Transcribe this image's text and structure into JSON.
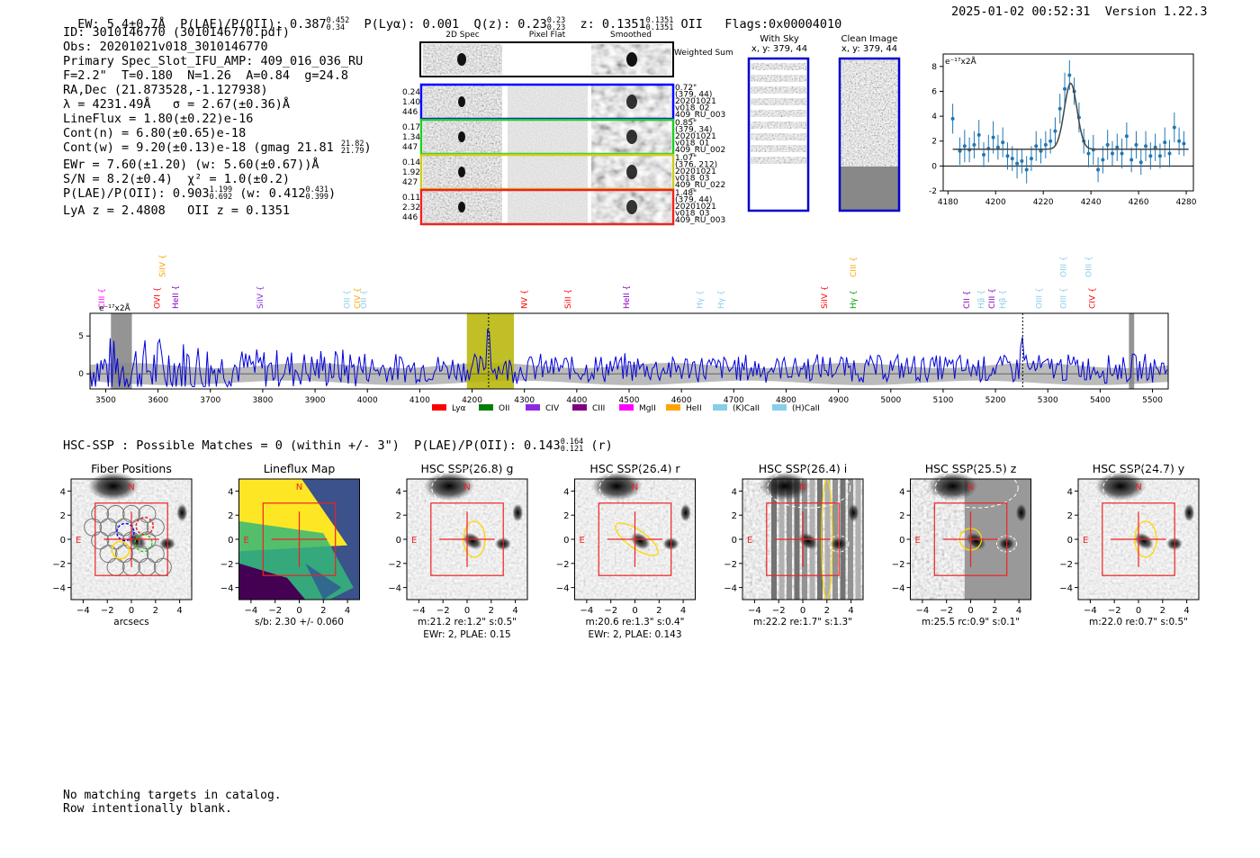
{
  "header": {
    "ew": "EW: 5.4±0.7Å",
    "plae_label": "P(LAE)/P(OII): 0.387",
    "plae_hi": "0.452",
    "plae_lo": "0.34",
    "plya": "P(Lyα): 0.001",
    "qz_label": "Q(z): 0.23",
    "qz_hi": "0.23",
    "qz_lo": "0.23",
    "z_label": "z: 0.1351",
    "z_hi": "0.1351",
    "z_lo": "0.1351",
    "z_line": "OII",
    "flags": "Flags:0x00004010",
    "timestamp": "2025-01-02 00:52:31",
    "version": "Version 1.22.3"
  },
  "info": {
    "id": "ID: 3010146770 (3010146770.pdf)",
    "obs": "Obs: 20201021v018_3010146770",
    "primary": "Primary Spec_Slot_IFU_AMP: 409_016_036_RU",
    "fparams": "F=2.2\"  T=0.180  N=1.26  A=0.84  g=24.8",
    "radec": "RA,Dec (21.873528,-1.127938)",
    "lambda": "λ = 4231.49Å   σ = 2.67(±0.36)Å",
    "lineflux": "LineFlux = 1.80(±0.22)e-16",
    "contn": "Cont(n) = 6.80(±0.65)e-18",
    "contw": "Cont(w) = 9.20(±0.13)e-18 (gmag 21.81",
    "contw_hi": "21.82",
    "contw_lo": "21.79",
    "contw_end": ")",
    "ewr": "EWr = 7.60(±1.20) (w: 5.60(±0.67))Å",
    "sn": "S/N = 8.2(±0.4)  χ² = 1.0(±0.2)",
    "plae": "P(LAE)/P(OII): 0.903",
    "plae_hi": "1.199",
    "plae_lo": "0.692",
    "plae_w": "(w: 0.412",
    "plae_w_hi": "0.431",
    "plae_w_lo": "0.399",
    "plae_end": ")",
    "zs": "LyA z = 2.4808   OII z = 0.1351"
  },
  "cutouts": {
    "col_titles": [
      "2D Spec",
      "Pixel Flat",
      "Smoothed"
    ],
    "weighted_label": "Weighted Sum",
    "rows": [
      {
        "left": [
          "0.24",
          "1.40",
          "446"
        ],
        "right": [
          "0.72\"",
          "(379, 44)",
          "20201021",
          "v018_02",
          "409_RU_003"
        ],
        "color": "#0000ff"
      },
      {
        "left": [
          "0.17",
          "1.34",
          "447"
        ],
        "right": [
          "0.85\"",
          "(379, 34)",
          "20201021",
          "v018_01",
          "409_RU_002"
        ],
        "color": "#22cc22"
      },
      {
        "left": [
          "0.14",
          "1.92",
          "427"
        ],
        "right": [
          "1.07\"",
          "(376, 212)",
          "20201021",
          "v018_03",
          "409_RU_022"
        ],
        "color": "#cccc22"
      },
      {
        "left": [
          "0.11",
          "2.32",
          "446"
        ],
        "right": [
          "1.48\"",
          "(379, 44)",
          "20201021",
          "v018_03",
          "409_RU_003"
        ],
        "color": "#ee2222"
      }
    ]
  },
  "sky": {
    "with_sky_title": "With Sky",
    "with_sky_xy": "x, y: 379, 44",
    "clean_title": "Clean Image",
    "clean_xy": "x, y: 379, 44"
  },
  "chart_data": [
    {
      "id": "zoom-fit",
      "type": "scatter",
      "title": "",
      "ylabel": "e⁻¹⁷x2Å",
      "xlim": [
        4178,
        4283
      ],
      "ylim": [
        -2,
        9
      ],
      "xticks": [
        4180,
        4200,
        4220,
        4240,
        4260,
        4280
      ],
      "yticks": [
        -2,
        0,
        2,
        4,
        6,
        8
      ],
      "points": [
        {
          "x": 4182,
          "y": 3.8,
          "e": 1.2
        },
        {
          "x": 4185,
          "y": 1.2,
          "e": 1.1
        },
        {
          "x": 4187,
          "y": 1.6,
          "e": 1.3
        },
        {
          "x": 4189,
          "y": 1.3,
          "e": 1.0
        },
        {
          "x": 4191,
          "y": 1.7,
          "e": 1.1
        },
        {
          "x": 4193,
          "y": 2.5,
          "e": 1.2
        },
        {
          "x": 4195,
          "y": 0.9,
          "e": 1.0
        },
        {
          "x": 4197,
          "y": 1.4,
          "e": 1.1
        },
        {
          "x": 4199,
          "y": 2.3,
          "e": 1.3
        },
        {
          "x": 4201,
          "y": 1.5,
          "e": 1.0
        },
        {
          "x": 4203,
          "y": 1.9,
          "e": 1.2
        },
        {
          "x": 4205,
          "y": 0.8,
          "e": 1.1
        },
        {
          "x": 4207,
          "y": 0.6,
          "e": 1.0
        },
        {
          "x": 4209,
          "y": 0.2,
          "e": 1.2
        },
        {
          "x": 4211,
          "y": 0.4,
          "e": 1.0
        },
        {
          "x": 4213,
          "y": -0.3,
          "e": 1.1
        },
        {
          "x": 4215,
          "y": 0.6,
          "e": 1.0
        },
        {
          "x": 4217,
          "y": 1.6,
          "e": 1.2
        },
        {
          "x": 4219,
          "y": 1.2,
          "e": 1.0
        },
        {
          "x": 4221,
          "y": 1.7,
          "e": 1.1
        },
        {
          "x": 4223,
          "y": 2.0,
          "e": 1.0
        },
        {
          "x": 4225,
          "y": 2.8,
          "e": 1.1
        },
        {
          "x": 4227,
          "y": 4.6,
          "e": 1.2
        },
        {
          "x": 4229,
          "y": 6.2,
          "e": 1.3
        },
        {
          "x": 4231,
          "y": 7.3,
          "e": 1.2
        },
        {
          "x": 4233,
          "y": 6.0,
          "e": 1.1
        },
        {
          "x": 4235,
          "y": 3.9,
          "e": 1.2
        },
        {
          "x": 4237,
          "y": 2.0,
          "e": 1.0
        },
        {
          "x": 4239,
          "y": 1.0,
          "e": 1.1
        },
        {
          "x": 4241,
          "y": 1.3,
          "e": 1.2
        },
        {
          "x": 4243,
          "y": -0.3,
          "e": 1.0
        },
        {
          "x": 4245,
          "y": 0.5,
          "e": 1.1
        },
        {
          "x": 4247,
          "y": 1.7,
          "e": 1.2
        },
        {
          "x": 4249,
          "y": 1.0,
          "e": 1.0
        },
        {
          "x": 4251,
          "y": 1.5,
          "e": 1.1
        },
        {
          "x": 4253,
          "y": 1.0,
          "e": 1.2
        },
        {
          "x": 4255,
          "y": 2.4,
          "e": 1.1
        },
        {
          "x": 4257,
          "y": 0.5,
          "e": 1.0
        },
        {
          "x": 4259,
          "y": 1.7,
          "e": 1.1
        },
        {
          "x": 4261,
          "y": 0.3,
          "e": 1.0
        },
        {
          "x": 4263,
          "y": 1.6,
          "e": 1.2
        },
        {
          "x": 4265,
          "y": 0.8,
          "e": 1.1
        },
        {
          "x": 4267,
          "y": 1.5,
          "e": 1.1
        },
        {
          "x": 4269,
          "y": 0.8,
          "e": 1.0
        },
        {
          "x": 4271,
          "y": 1.9,
          "e": 1.2
        },
        {
          "x": 4273,
          "y": 1.0,
          "e": 1.1
        },
        {
          "x": 4275,
          "y": 3.1,
          "e": 1.2
        },
        {
          "x": 4277,
          "y": 2.0,
          "e": 1.1
        },
        {
          "x": 4279,
          "y": 1.8,
          "e": 1.0
        }
      ],
      "fit": {
        "center": 4231.49,
        "sigma": 2.67,
        "amplitude": 5.3,
        "continuum": 1.35
      }
    },
    {
      "id": "full-spectrum",
      "type": "line",
      "ylabel": "e⁻¹⁷x2Å",
      "xlim": [
        3470,
        5530
      ],
      "ylim": [
        -2,
        8
      ],
      "xticks": [
        3500,
        3600,
        3700,
        3800,
        3900,
        4000,
        4100,
        4200,
        4300,
        4400,
        4500,
        4600,
        4700,
        4800,
        4900,
        5000,
        5100,
        5200,
        5300,
        5400,
        5500
      ],
      "yticks": [
        0,
        5
      ],
      "highlight": [
        4190,
        4280
      ],
      "line_markers": [
        4231.5,
        5252
      ],
      "lines": [
        {
          "label": "CIII",
          "x": 3492,
          "color": "#ff00ff",
          "row": 0
        },
        {
          "label": "OVI",
          "x": 3598,
          "color": "#ff0000",
          "row": 0
        },
        {
          "label": "HeII",
          "x": 3633,
          "color": "#8000c0",
          "row": 0
        },
        {
          "label": "SiIV",
          "x": 3608,
          "color": "#ffa500",
          "row": 1
        },
        {
          "label": "SiIV",
          "x": 3795,
          "color": "#8a2be2",
          "row": 0
        },
        {
          "label": "OII",
          "x": 3961,
          "color": "#87ceeb",
          "row": 0
        },
        {
          "label": "CIV",
          "x": 3981,
          "color": "#ffa500",
          "row": 0
        },
        {
          "label": "OII",
          "x": 3993,
          "color": "#87ceeb",
          "row": 0
        },
        {
          "label": "NV",
          "x": 4300,
          "color": "#ff0000",
          "row": 0
        },
        {
          "label": "SiII",
          "x": 4383,
          "color": "#ff0000",
          "row": 0
        },
        {
          "label": "HeII",
          "x": 4495,
          "color": "#8000c0",
          "row": 0
        },
        {
          "label": "Hγ",
          "x": 4635,
          "color": "#87ceeb",
          "row": 0
        },
        {
          "label": "Hγ",
          "x": 4675,
          "color": "#87ceeb",
          "row": 0
        },
        {
          "label": "SiIV",
          "x": 4873,
          "color": "#ff0000",
          "row": 0
        },
        {
          "label": "CIII",
          "x": 4928,
          "color": "#ffa500",
          "row": 1
        },
        {
          "label": "Hγ",
          "x": 4928,
          "color": "#00a000",
          "row": 0
        },
        {
          "label": "CII",
          "x": 5145,
          "color": "#8000c0",
          "row": 0
        },
        {
          "label": "Hβ",
          "x": 5172,
          "color": "#87ceeb",
          "row": 0
        },
        {
          "label": "CIII",
          "x": 5193,
          "color": "#8000c0",
          "row": 0
        },
        {
          "label": "Hβ",
          "x": 5214,
          "color": "#87ceeb",
          "row": 0
        },
        {
          "label": "OIII",
          "x": 5283,
          "color": "#87ceeb",
          "row": 0
        },
        {
          "label": "OIII",
          "x": 5330,
          "color": "#87ceeb",
          "row": 1
        },
        {
          "label": "OIII",
          "x": 5330,
          "color": "#87ceeb",
          "row": 0
        },
        {
          "label": "OIII",
          "x": 5378,
          "color": "#87ceeb",
          "row": 1
        },
        {
          "label": "CIV",
          "x": 5385,
          "color": "#ff0000",
          "row": 0
        }
      ],
      "legend": [
        {
          "label": "Lyα",
          "color": "#ff0000"
        },
        {
          "label": "OII",
          "color": "#008000"
        },
        {
          "label": "CIV",
          "color": "#8a2be2"
        },
        {
          "label": "CIII",
          "color": "#800080"
        },
        {
          "label": "MgII",
          "color": "#ff00ff"
        },
        {
          "label": "HeII",
          "color": "#ffa500"
        },
        {
          "label": "(K)CaII",
          "color": "#87ceeb"
        },
        {
          "label": "(H)CaII",
          "color": "#87ceeb"
        }
      ]
    }
  ],
  "hsc": {
    "summary": "HSC-SSP : Possible Matches = 0 (within +/- 3\")  P(LAE)/P(OII): 0.143",
    "summary_hi": "0.164",
    "summary_lo": "0.121",
    "summary_end": "(r)",
    "ticks": [
      "4",
      "2",
      "0",
      "−2",
      "−4"
    ],
    "xticks": [
      "−4",
      "−2",
      "0",
      "2",
      "4"
    ],
    "north": "N",
    "east": "E",
    "panels": [
      {
        "title": "Fiber Positions",
        "caption": [
          "arcsecs"
        ]
      },
      {
        "title": "Lineflux Map",
        "caption": [
          "s/b: 2.30 +/- 0.060"
        ]
      },
      {
        "title": "HSC SSP(26.8) g",
        "caption": [
          "m:21.2  re:1.2\"  s:0.5\"",
          "EWr: 2, PLAE: 0.15"
        ]
      },
      {
        "title": "HSC SSP(26.4) r",
        "caption": [
          "m:20.6  re:1.3\"  s:0.4\"",
          "EWr: 2, PLAE: 0.143"
        ]
      },
      {
        "title": "HSC SSP(26.4) i",
        "caption": [
          "m:22.2  re:1.7\"  s:1.3\""
        ]
      },
      {
        "title": "HSC SSP(25.5) z",
        "caption": [
          "m:25.5  rc:0.9\"  s:0.1\""
        ]
      },
      {
        "title": "HSC SSP(24.7) y",
        "caption": [
          "m:22.0  re:0.7\"  s:0.5\""
        ]
      }
    ]
  },
  "footer": {
    "line1": "No matching targets in catalog.",
    "line2": "Row intentionally blank."
  }
}
